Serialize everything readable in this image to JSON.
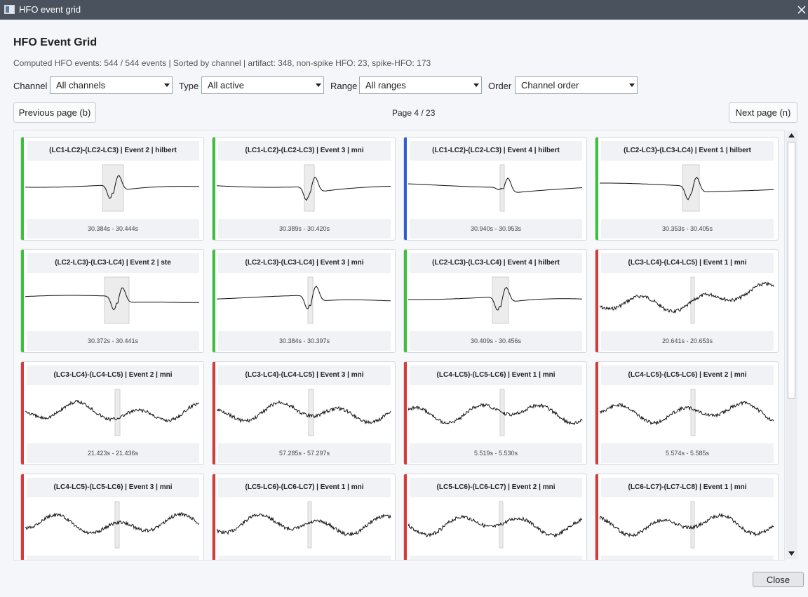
{
  "window_title": "HFO event grid",
  "header": {
    "title": "HFO Event Grid",
    "summary": "Computed HFO events: 544 / 544 events | Sorted by channel | artifact: 348, non-spike HFO: 23, spike-HFO: 173"
  },
  "filters": [
    {
      "label": "Channel",
      "value": "All channels"
    },
    {
      "label": "Type",
      "value": "All active"
    },
    {
      "label": "Range",
      "value": "All ranges"
    },
    {
      "label": "Order",
      "value": "Channel order"
    }
  ],
  "nav": {
    "previous": "Previous page (b)",
    "page": "Page 4 / 23",
    "next": "Next page (n)"
  },
  "cards": [
    {
      "title": "(LC1-LC2)-(LC2-LC3) | Event 2 | hilbert",
      "time": "30.384s - 30.444s",
      "color": "#3cc13c"
    },
    {
      "title": "(LC1-LC2)-(LC2-LC3) | Event 3 | mni",
      "time": "30.389s - 30.420s",
      "color": "#3cc13c"
    },
    {
      "title": "(LC1-LC2)-(LC2-LC3) | Event 4 | hilbert",
      "time": "30.940s - 30.953s",
      "color": "#2f5fd0"
    },
    {
      "title": "(LC2-LC3)-(LC3-LC4) | Event 1 | hilbert",
      "time": "30.353s - 30.405s",
      "color": "#3cc13c"
    },
    {
      "title": "(LC2-LC3)-(LC3-LC4) | Event 2 | ste",
      "time": "30.372s - 30.441s",
      "color": "#3cc13c"
    },
    {
      "title": "(LC2-LC3)-(LC3-LC4) | Event 3 | mni",
      "time": "30.384s - 30.397s",
      "color": "#3cc13c"
    },
    {
      "title": "(LC2-LC3)-(LC3-LC4) | Event 4 | hilbert",
      "time": "30.409s - 30.456s",
      "color": "#3cc13c"
    },
    {
      "title": "(LC3-LC4)-(LC4-LC5) | Event 1 | mni",
      "time": "20.641s - 20.653s",
      "color": "#d83a3a"
    },
    {
      "title": "(LC3-LC4)-(LC4-LC5) | Event 2 | mni",
      "time": "21.423s - 21.436s",
      "color": "#d83a3a"
    },
    {
      "title": "(LC3-LC4)-(LC4-LC5) | Event 3 | mni",
      "time": "57.285s - 57.297s",
      "color": "#d83a3a"
    },
    {
      "title": "(LC4-LC5)-(LC5-LC6) | Event 1 | mni",
      "time": "5.519s - 5.530s",
      "color": "#d83a3a"
    },
    {
      "title": "(LC4-LC5)-(LC5-LC6) | Event 2 | mni",
      "time": "5.574s - 5.585s",
      "color": "#d83a3a"
    },
    {
      "title": "(LC4-LC5)-(LC5-LC6) | Event 3 | mni",
      "time": "",
      "color": "#d83a3a"
    },
    {
      "title": "(LC5-LC6)-(LC6-LC7) | Event 1 | mni",
      "time": "",
      "color": "#d83a3a"
    },
    {
      "title": "(LC5-LC6)-(LC6-LC7) | Event 2 | mni",
      "time": "",
      "color": "#d83a3a"
    },
    {
      "title": "(LC6-LC7)-(LC7-LC8) | Event 1 | mni",
      "time": "",
      "color": "#d83a3a"
    }
  ],
  "close": "Close"
}
